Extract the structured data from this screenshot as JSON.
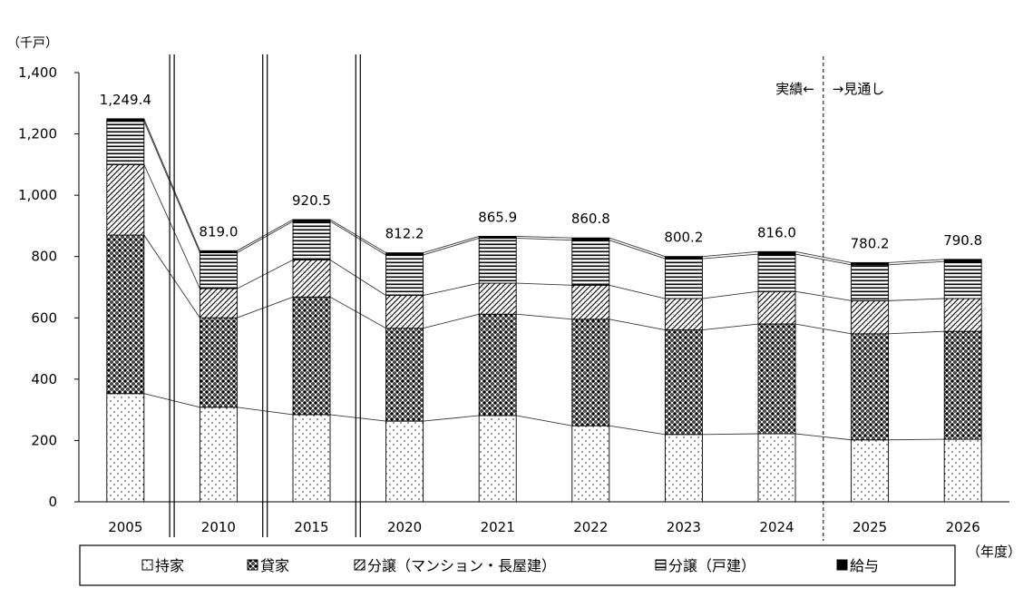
{
  "chart_data": {
    "type": "bar",
    "stacked": true,
    "categories": [
      "2005",
      "2010",
      "2015",
      "2020",
      "2021",
      "2022",
      "2023",
      "2024",
      "2025",
      "2026"
    ],
    "series": [
      {
        "name": "持家",
        "values": [
          353.0,
          308.5,
          284.4,
          263.1,
          281.3,
          248.1,
          219.6,
          222.0,
          202.0,
          204.0
        ]
      },
      {
        "name": "貸家",
        "values": [
          517.0,
          291.8,
          383.7,
          303.0,
          330.8,
          347.4,
          341.2,
          358.0,
          346.0,
          352.0
        ]
      },
      {
        "name": "分譲（マンション・長屋建）",
        "values": [
          230.0,
          95.0,
          121.0,
          107.0,
          101.0,
          111.0,
          102.0,
          106.0,
          108.0,
          107.0
        ]
      },
      {
        "name": "分譲（戸建）",
        "values": [
          141.0,
          117.0,
          125.8,
          132.0,
          146.9,
          147.0,
          130.4,
          122.0,
          117.2,
          120.8
        ]
      },
      {
        "name": "給与",
        "values": [
          8.4,
          6.7,
          5.6,
          7.1,
          5.9,
          7.3,
          7.0,
          8.0,
          7.0,
          7.0
        ]
      }
    ],
    "totals": [
      1249.4,
      819.0,
      920.5,
      812.2,
      865.9,
      860.8,
      800.2,
      816.0,
      780.2,
      790.8
    ],
    "total_labels": [
      "1,249.4",
      "819.0",
      "920.5",
      "812.2",
      "865.9",
      "860.8",
      "800.2",
      "816.0",
      "780.2",
      "790.8"
    ],
    "xlabel": "（年度）",
    "ylabel": "（千戸）",
    "ylim": [
      0,
      1400
    ],
    "y_ticks": [
      0,
      200,
      400,
      600,
      800,
      1000,
      1200,
      1400
    ],
    "y_tick_labels": [
      "0",
      "200",
      "400",
      "600",
      "800",
      "1,000",
      "1,200",
      "1,400"
    ],
    "grid": false,
    "legend": "bottom",
    "annotations": {
      "actual": "実績←",
      "forecast": "→見通し"
    }
  }
}
